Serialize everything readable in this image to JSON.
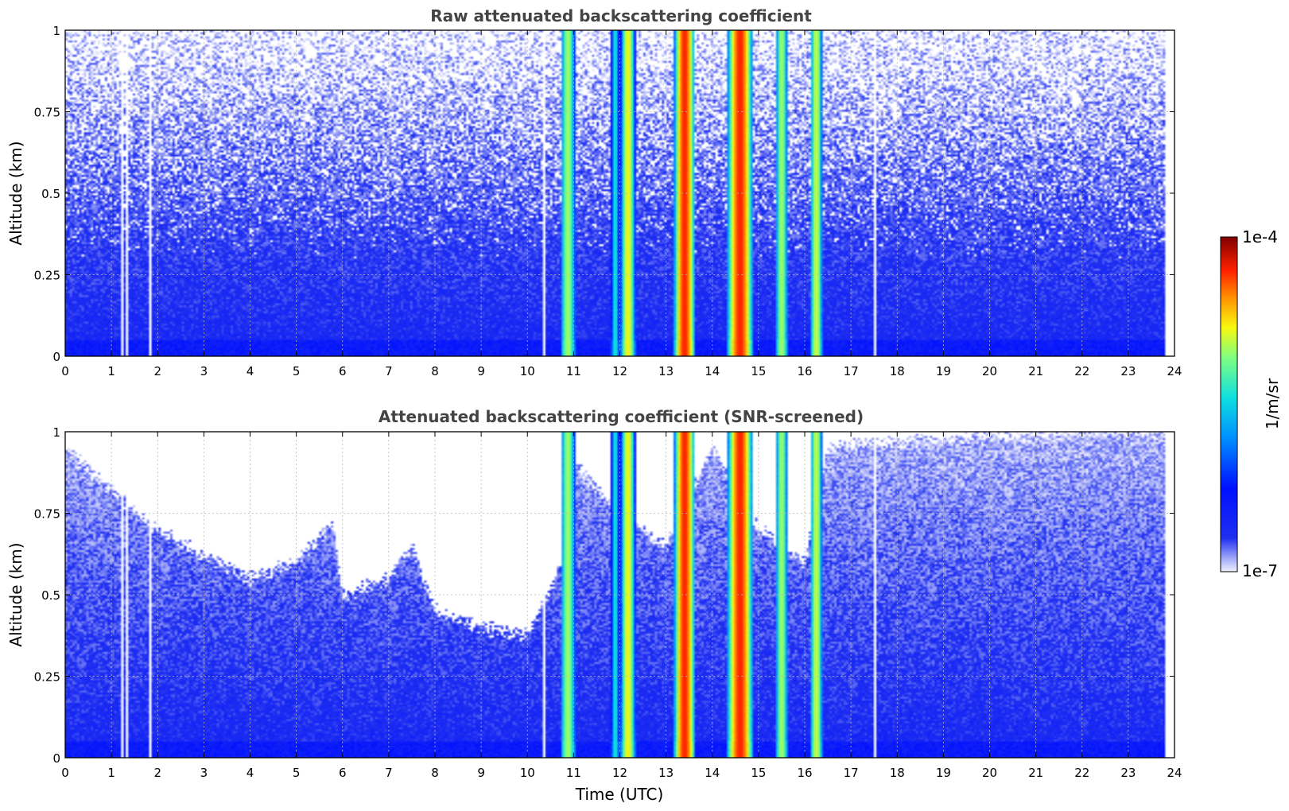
{
  "chart_data": [
    {
      "type": "heatmap",
      "title": "Raw attenuated backscattering coefficient",
      "xlabel": "",
      "ylabel": "Altitude (km)",
      "xlim": [
        0,
        24
      ],
      "ylim": [
        0,
        1
      ],
      "x_ticks": [
        "0",
        "1",
        "2",
        "3",
        "4",
        "5",
        "6",
        "7",
        "8",
        "9",
        "10",
        "11",
        "12",
        "13",
        "14",
        "15",
        "16",
        "17",
        "18",
        "19",
        "20",
        "21",
        "22",
        "23",
        "24"
      ],
      "y_ticks": [
        "0",
        "0.25",
        "0.5",
        "0.75",
        "1"
      ],
      "grid": true,
      "data_extent_x": [
        0,
        23.8
      ],
      "background_log10": {
        "near_surface": -6.4,
        "mid": -6.6,
        "top": -6.9
      },
      "noise_below_threshold_above_km": 0.3,
      "gap_times_utc": [
        1.25,
        1.35,
        1.85,
        10.35,
        17.5
      ],
      "vertical_features": [
        {
          "t_start": 10.75,
          "t_end": 11.0,
          "log10_peak": -5.0
        },
        {
          "t_start": 11.85,
          "t_end": 11.95,
          "log10_peak": -5.4
        },
        {
          "t_start": 12.05,
          "t_end": 12.3,
          "log10_peak": -4.8
        },
        {
          "t_start": 13.2,
          "t_end": 13.6,
          "log10_peak": -4.3
        },
        {
          "t_start": 14.35,
          "t_end": 14.85,
          "log10_peak": -4.3
        },
        {
          "t_start": 15.4,
          "t_end": 15.6,
          "log10_peak": -5.0
        },
        {
          "t_start": 16.15,
          "t_end": 16.35,
          "log10_peak": -4.9
        }
      ]
    },
    {
      "type": "heatmap",
      "title": "Attenuated backscattering coefficient (SNR-screened)",
      "xlabel": "Time (UTC)",
      "ylabel": "Altitude (km)",
      "xlim": [
        0,
        24
      ],
      "ylim": [
        0,
        1
      ],
      "x_ticks": [
        "0",
        "1",
        "2",
        "3",
        "4",
        "5",
        "6",
        "7",
        "8",
        "9",
        "10",
        "11",
        "12",
        "13",
        "14",
        "15",
        "16",
        "17",
        "18",
        "19",
        "20",
        "21",
        "22",
        "23",
        "24"
      ],
      "y_ticks": [
        "0",
        "0.25",
        "0.5",
        "0.75",
        "1"
      ],
      "grid": true,
      "data_extent_x": [
        0,
        23.8
      ],
      "screened_top_km_by_time": {
        "t": [
          0,
          1,
          2,
          3,
          4,
          5,
          5.8,
          6,
          7,
          7.5,
          8,
          9,
          10,
          10.7,
          11,
          12,
          13,
          14,
          15,
          16,
          16.5,
          17,
          18,
          19,
          20,
          21,
          22,
          23,
          23.8
        ],
        "top_km": [
          0.95,
          0.82,
          0.7,
          0.62,
          0.55,
          0.6,
          0.72,
          0.5,
          0.55,
          0.65,
          0.45,
          0.4,
          0.38,
          0.58,
          0.9,
          0.75,
          0.65,
          0.95,
          0.7,
          0.6,
          0.95,
          0.96,
          0.97,
          0.98,
          0.99,
          0.99,
          1.0,
          1.0,
          1.0
        ]
      }
    }
  ],
  "colorbar": {
    "label": "1/m/sr",
    "max_label": "1e-4",
    "min_label": "1e-7",
    "log10_range": [
      -7,
      -4
    ],
    "colormap": "jet"
  }
}
